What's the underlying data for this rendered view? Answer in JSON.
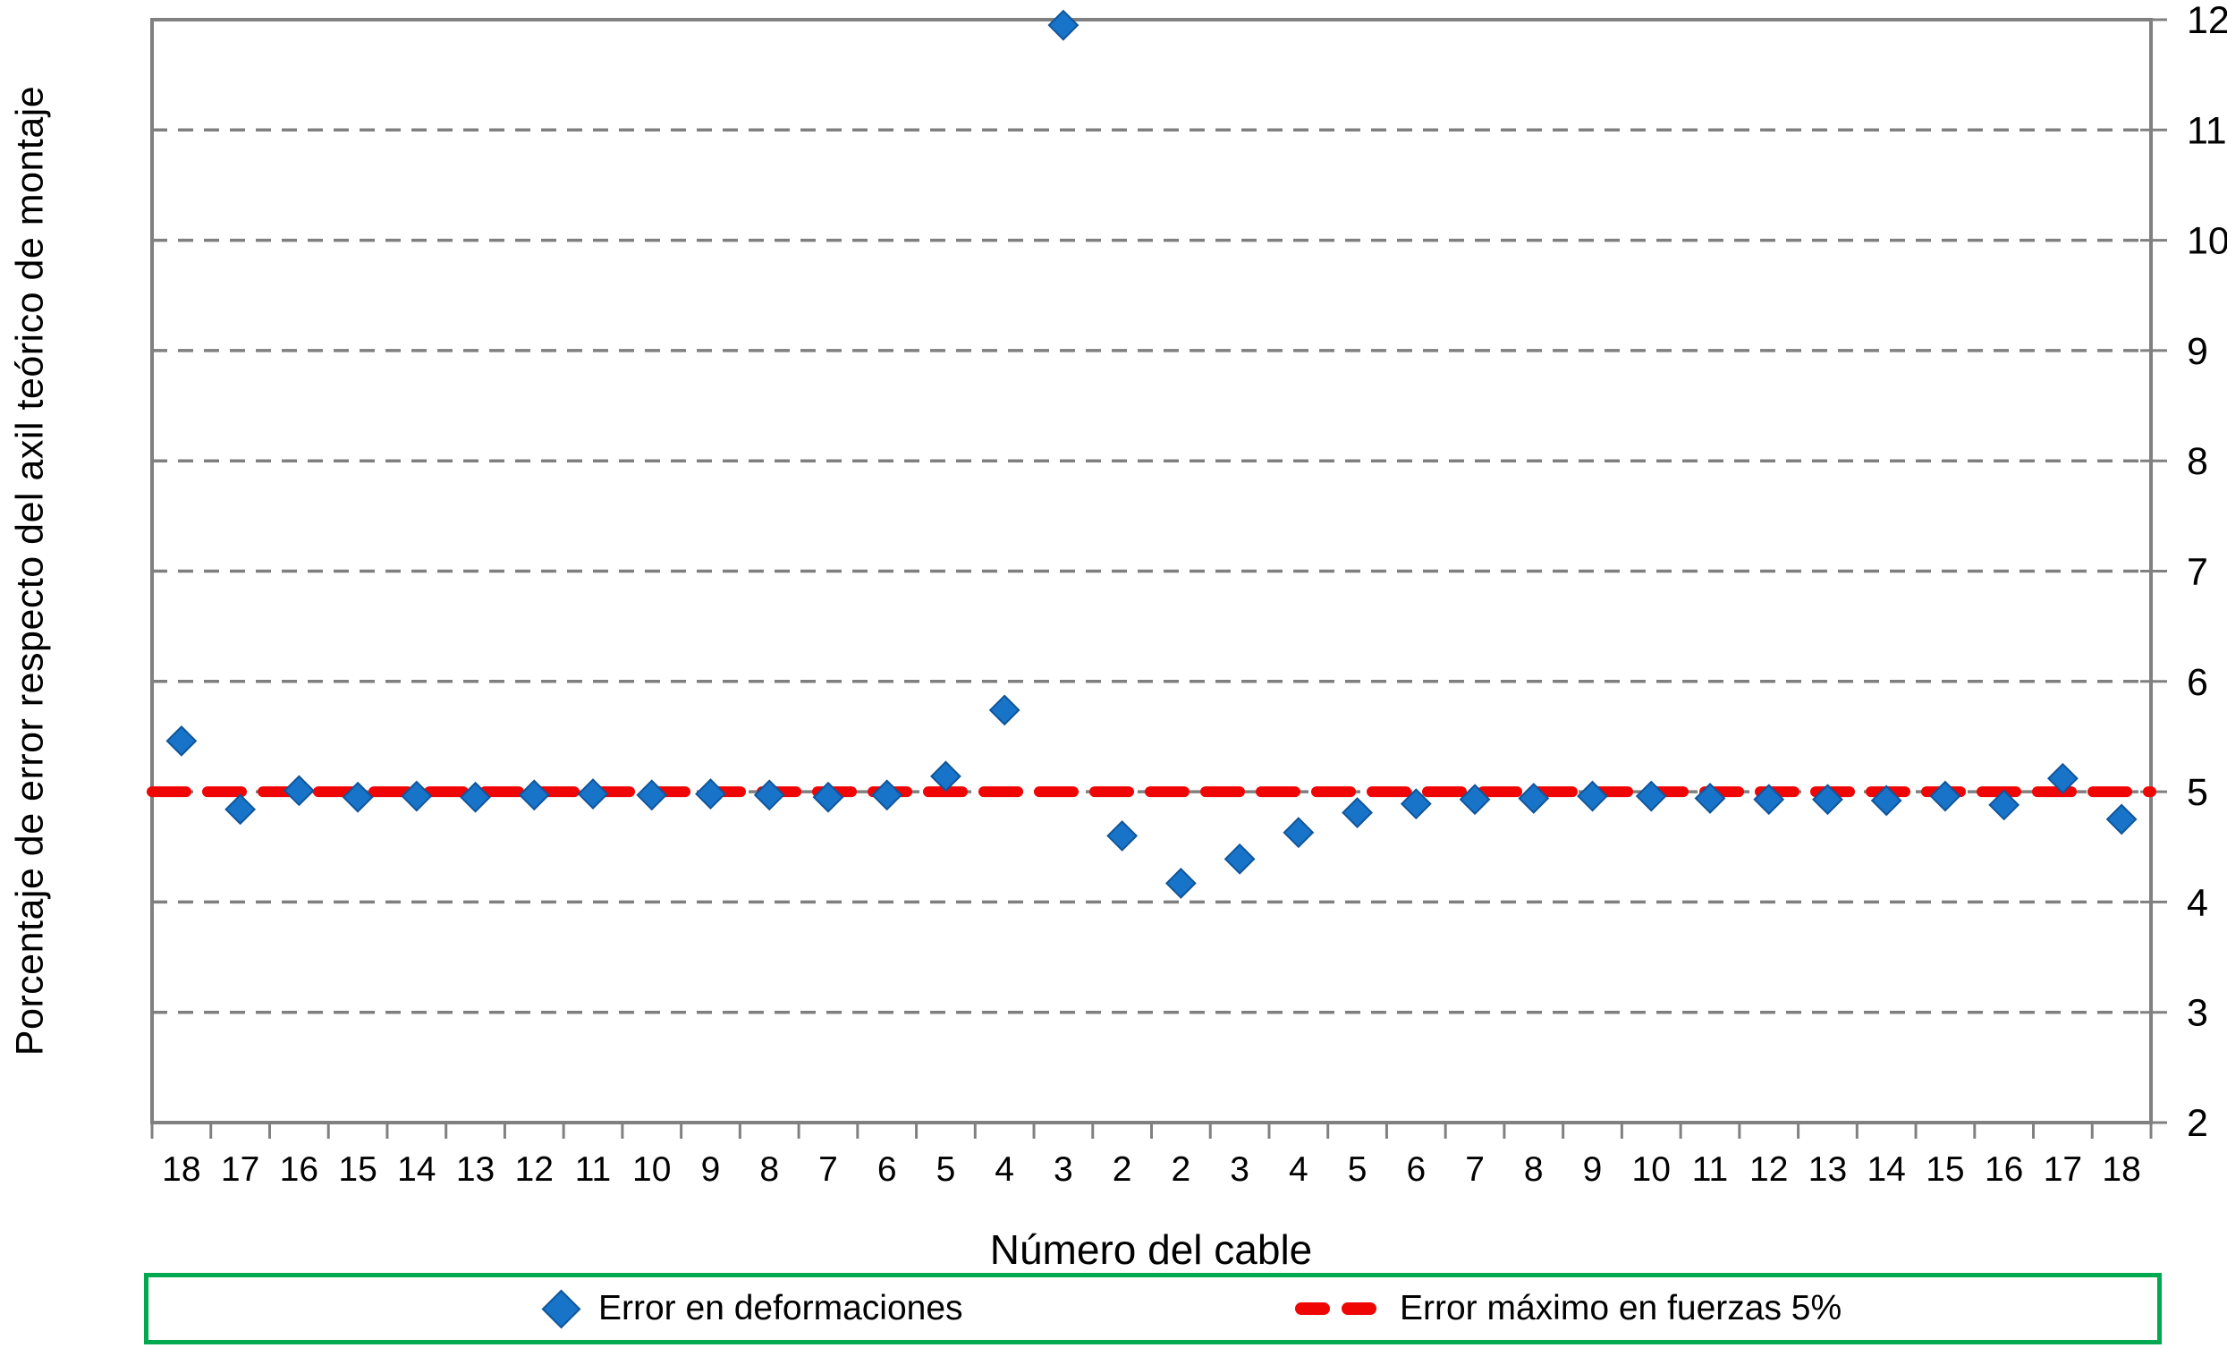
{
  "chart_data": {
    "type": "scatter",
    "title": "",
    "xlabel": "Número del cable",
    "ylabel": "Porcentaje de error respecto del axil teórico de montaje",
    "ylim": [
      2,
      12
    ],
    "yticks": [
      2,
      3,
      4,
      5,
      6,
      7,
      8,
      9,
      10,
      11,
      12
    ],
    "ytick_side": "right",
    "grid": "horizontal-dashed-gray",
    "legend_position": "bottom",
    "categories": [
      "18",
      "17",
      "16",
      "15",
      "14",
      "13",
      "12",
      "11",
      "10",
      "9",
      "8",
      "7",
      "6",
      "5",
      "4",
      "3",
      "2",
      "2",
      "3",
      "4",
      "5",
      "6",
      "7",
      "8",
      "9",
      "10",
      "11",
      "12",
      "13",
      "14",
      "15",
      "16",
      "17",
      "18"
    ],
    "series": [
      {
        "name": "Error en deformaciones",
        "type": "scatter",
        "marker": "diamond",
        "color": "#1874C8",
        "marker_edge": "#10559A",
        "values": [
          5.46,
          4.84,
          5.01,
          4.95,
          4.96,
          4.95,
          4.97,
          4.98,
          4.97,
          4.98,
          4.97,
          4.95,
          4.97,
          5.14,
          5.74,
          11.95,
          4.6,
          4.17,
          4.39,
          4.63,
          4.81,
          4.89,
          4.93,
          4.94,
          4.96,
          4.96,
          4.94,
          4.93,
          4.93,
          4.92,
          4.96,
          4.88,
          5.12,
          4.75
        ]
      }
    ],
    "reference_line": {
      "name": "Error máximo en fuerzas 5%",
      "value": 5,
      "style": "dashed",
      "color": "#F00505"
    },
    "colors": {
      "gridline": "#7F7F7F",
      "axis": "#808080",
      "legend_border": "#00A94F",
      "marker": "#1874C8",
      "reference": "#F00505"
    }
  }
}
